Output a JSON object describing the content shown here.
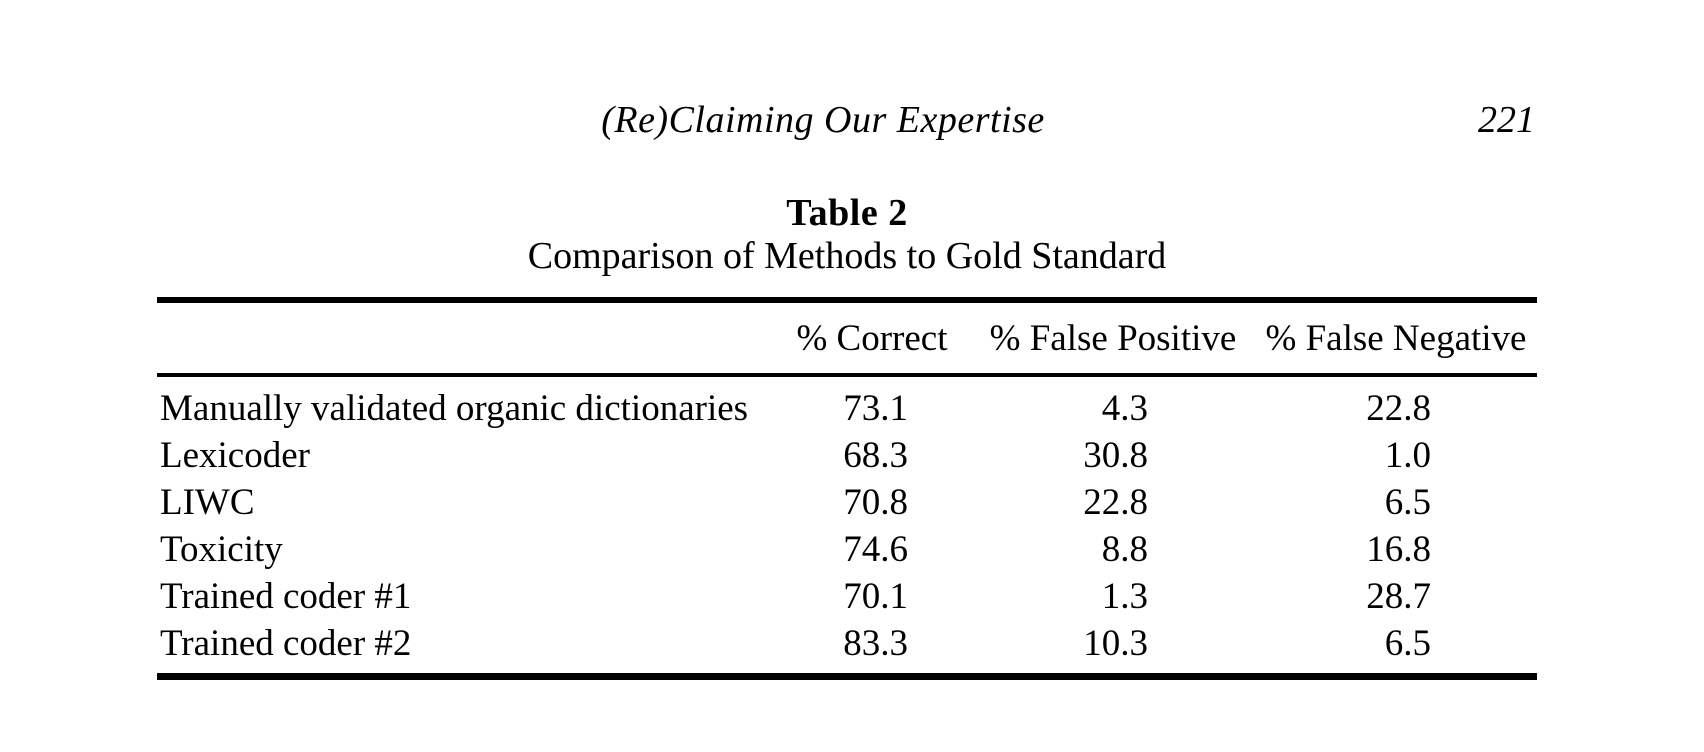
{
  "page_header": {
    "running_head": "(Re)Claiming Our Expertise",
    "page_number": "221"
  },
  "table": {
    "title": "Table 2",
    "caption": "Comparison of Methods to Gold Standard",
    "columns": {
      "method": "",
      "correct": "% Correct",
      "false_positive": "% False Positive",
      "false_negative": "% False Negative"
    },
    "rows": [
      {
        "method": "Manually validated organic dictionaries",
        "values": [
          "73.1",
          "4.3",
          "22.8"
        ]
      },
      {
        "method": "Lexicoder",
        "values": [
          "68.3",
          "30.8",
          "1.0"
        ]
      },
      {
        "method": "LIWC",
        "values": [
          "70.8",
          "22.8",
          "6.5"
        ]
      },
      {
        "method": "Toxicity",
        "values": [
          "74.6",
          "8.8",
          "16.8"
        ]
      },
      {
        "method": "Trained coder #1",
        "values": [
          "70.1",
          "1.3",
          "28.7"
        ]
      },
      {
        "method": "Trained coder #2",
        "values": [
          "83.3",
          "10.3",
          "6.5"
        ]
      }
    ]
  },
  "chart_data": {
    "type": "table",
    "title": "Table 2",
    "subtitle": "Comparison of Methods to Gold Standard",
    "columns": [
      "",
      "% Correct",
      "% False Positive",
      "% False Negative"
    ],
    "rows": [
      [
        "Manually validated organic dictionaries",
        73.1,
        4.3,
        22.8
      ],
      [
        "Lexicoder",
        68.3,
        30.8,
        1.0
      ],
      [
        "LIWC",
        70.8,
        22.8,
        6.5
      ],
      [
        "Toxicity",
        74.6,
        8.8,
        16.8
      ],
      [
        "Trained coder #1",
        70.1,
        1.3,
        28.7
      ],
      [
        "Trained coder #2",
        83.3,
        10.3,
        6.5
      ]
    ]
  }
}
